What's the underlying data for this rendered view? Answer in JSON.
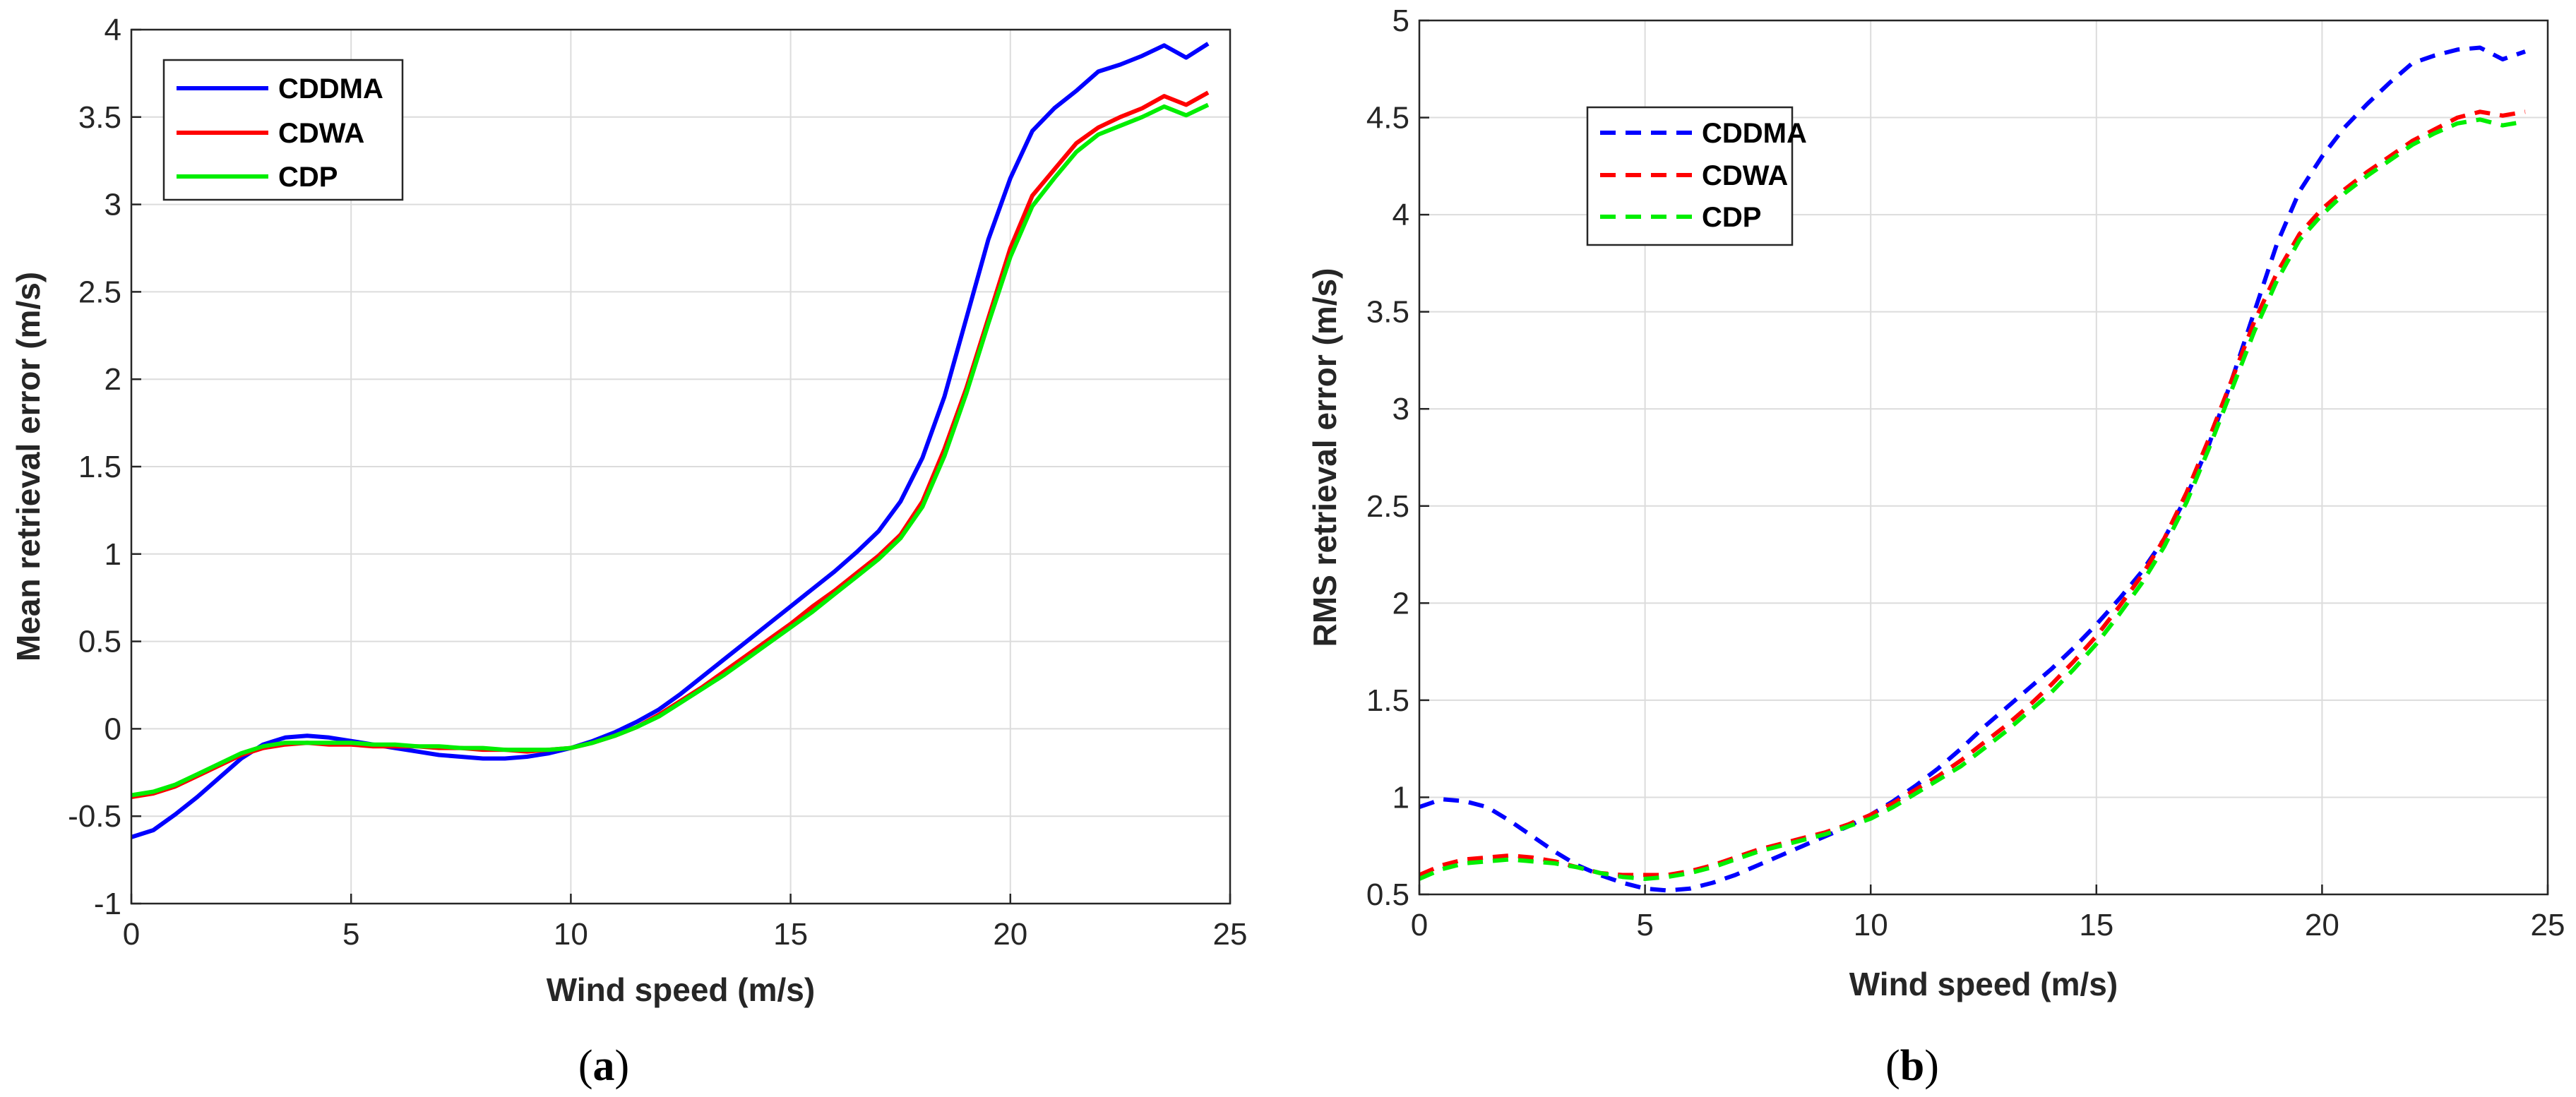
{
  "chart_data": [
    {
      "type": "line",
      "caption": "a",
      "xlabel": "Wind speed (m/s)",
      "ylabel": "Mean retrieval error (m/s)",
      "xlim": [
        0,
        25
      ],
      "ylim": [
        -1,
        4
      ],
      "xticks": [
        0,
        5,
        10,
        15,
        20,
        25
      ],
      "yticks": [
        -1,
        -0.5,
        0,
        0.5,
        1,
        1.5,
        2,
        2.5,
        3,
        3.5,
        4
      ],
      "grid": true,
      "legend_position": "top-left",
      "line_style": "solid",
      "x": [
        0,
        0.5,
        1,
        1.5,
        2,
        2.5,
        3,
        3.5,
        4,
        4.5,
        5,
        5.5,
        6,
        6.5,
        7,
        7.5,
        8,
        8.5,
        9,
        9.5,
        10,
        10.5,
        11,
        11.5,
        12,
        12.5,
        13,
        13.5,
        14,
        14.5,
        15,
        15.5,
        16,
        16.5,
        17,
        17.5,
        18,
        18.5,
        19,
        19.5,
        20,
        20.5,
        21,
        21.5,
        22,
        22.5,
        23,
        23.5,
        24,
        24.5
      ],
      "series": [
        {
          "name": "CDDMA",
          "color": "#0000ff",
          "values": [
            -0.62,
            -0.58,
            -0.49,
            -0.39,
            -0.28,
            -0.17,
            -0.09,
            -0.05,
            -0.04,
            -0.05,
            -0.07,
            -0.09,
            -0.11,
            -0.13,
            -0.15,
            -0.16,
            -0.17,
            -0.17,
            -0.16,
            -0.14,
            -0.11,
            -0.07,
            -0.02,
            0.04,
            0.11,
            0.2,
            0.3,
            0.4,
            0.5,
            0.6,
            0.7,
            0.8,
            0.9,
            1.01,
            1.13,
            1.3,
            1.55,
            1.9,
            2.35,
            2.8,
            3.15,
            3.42,
            3.55,
            3.65,
            3.76,
            3.8,
            3.85,
            3.91,
            3.84,
            3.92
          ]
        },
        {
          "name": "CDWA",
          "color": "#ff0000",
          "values": [
            -0.39,
            -0.37,
            -0.33,
            -0.27,
            -0.21,
            -0.15,
            -0.11,
            -0.09,
            -0.08,
            -0.09,
            -0.09,
            -0.1,
            -0.1,
            -0.1,
            -0.11,
            -0.11,
            -0.12,
            -0.12,
            -0.13,
            -0.12,
            -0.11,
            -0.08,
            -0.04,
            0.01,
            0.08,
            0.16,
            0.24,
            0.33,
            0.42,
            0.51,
            0.6,
            0.7,
            0.79,
            0.89,
            0.99,
            1.11,
            1.3,
            1.6,
            1.95,
            2.35,
            2.75,
            3.05,
            3.2,
            3.35,
            3.44,
            3.5,
            3.55,
            3.62,
            3.57,
            3.64
          ]
        },
        {
          "name": "CDP",
          "color": "#00ee00",
          "values": [
            -0.38,
            -0.36,
            -0.32,
            -0.26,
            -0.2,
            -0.14,
            -0.1,
            -0.08,
            -0.08,
            -0.08,
            -0.08,
            -0.09,
            -0.09,
            -0.1,
            -0.1,
            -0.11,
            -0.11,
            -0.12,
            -0.12,
            -0.12,
            -0.11,
            -0.08,
            -0.04,
            0.01,
            0.07,
            0.15,
            0.23,
            0.31,
            0.4,
            0.49,
            0.58,
            0.67,
            0.77,
            0.87,
            0.97,
            1.09,
            1.27,
            1.56,
            1.92,
            2.32,
            2.7,
            2.99,
            3.15,
            3.3,
            3.4,
            3.45,
            3.5,
            3.56,
            3.51,
            3.57
          ]
        }
      ]
    },
    {
      "type": "line",
      "caption": "b",
      "xlabel": "Wind speed (m/s)",
      "ylabel": "RMS retrieval error (m/s)",
      "xlim": [
        0,
        25
      ],
      "ylim": [
        0.5,
        5
      ],
      "xticks": [
        0,
        5,
        10,
        15,
        20,
        25
      ],
      "yticks": [
        0.5,
        1,
        1.5,
        2,
        2.5,
        3,
        3.5,
        4,
        4.5,
        5
      ],
      "grid": true,
      "legend_position": "upper-left",
      "line_style": "dashed",
      "x": [
        0,
        0.5,
        1,
        1.5,
        2,
        2.5,
        3,
        3.5,
        4,
        4.5,
        5,
        5.5,
        6,
        6.5,
        7,
        7.5,
        8,
        8.5,
        9,
        9.5,
        10,
        10.5,
        11,
        11.5,
        12,
        12.5,
        13,
        13.5,
        14,
        14.5,
        15,
        15.5,
        16,
        16.5,
        17,
        17.5,
        18,
        18.5,
        19,
        19.5,
        20,
        20.5,
        21,
        21.5,
        22,
        22.5,
        23,
        23.5,
        24,
        24.5
      ],
      "series": [
        {
          "name": "CDDMA",
          "color": "#0000ff",
          "values": [
            0.95,
            0.99,
            0.98,
            0.95,
            0.88,
            0.8,
            0.72,
            0.65,
            0.6,
            0.56,
            0.53,
            0.52,
            0.53,
            0.56,
            0.6,
            0.65,
            0.7,
            0.75,
            0.8,
            0.85,
            0.91,
            0.98,
            1.06,
            1.15,
            1.25,
            1.36,
            1.46,
            1.56,
            1.66,
            1.77,
            1.89,
            2.02,
            2.16,
            2.33,
            2.55,
            2.82,
            3.15,
            3.5,
            3.85,
            4.12,
            4.3,
            4.45,
            4.57,
            4.68,
            4.78,
            4.82,
            4.85,
            4.86,
            4.8,
            4.84
          ]
        },
        {
          "name": "CDWA",
          "color": "#ff0000",
          "values": [
            0.6,
            0.65,
            0.68,
            0.69,
            0.7,
            0.69,
            0.67,
            0.64,
            0.61,
            0.6,
            0.6,
            0.6,
            0.62,
            0.65,
            0.69,
            0.73,
            0.76,
            0.79,
            0.82,
            0.86,
            0.91,
            0.97,
            1.04,
            1.11,
            1.19,
            1.28,
            1.37,
            1.47,
            1.58,
            1.7,
            1.83,
            1.98,
            2.14,
            2.33,
            2.57,
            2.85,
            3.15,
            3.45,
            3.7,
            3.9,
            4.03,
            4.13,
            4.22,
            4.3,
            4.38,
            4.44,
            4.5,
            4.53,
            4.51,
            4.53
          ]
        },
        {
          "name": "CDP",
          "color": "#00ee00",
          "values": [
            0.58,
            0.63,
            0.66,
            0.67,
            0.68,
            0.67,
            0.66,
            0.64,
            0.61,
            0.59,
            0.58,
            0.59,
            0.61,
            0.64,
            0.68,
            0.72,
            0.75,
            0.78,
            0.81,
            0.85,
            0.89,
            0.95,
            1.02,
            1.09,
            1.16,
            1.25,
            1.34,
            1.44,
            1.54,
            1.66,
            1.79,
            1.94,
            2.1,
            2.29,
            2.52,
            2.8,
            3.1,
            3.4,
            3.66,
            3.87,
            4.0,
            4.11,
            4.2,
            4.28,
            4.36,
            4.42,
            4.47,
            4.49,
            4.46,
            4.48
          ]
        }
      ]
    }
  ]
}
